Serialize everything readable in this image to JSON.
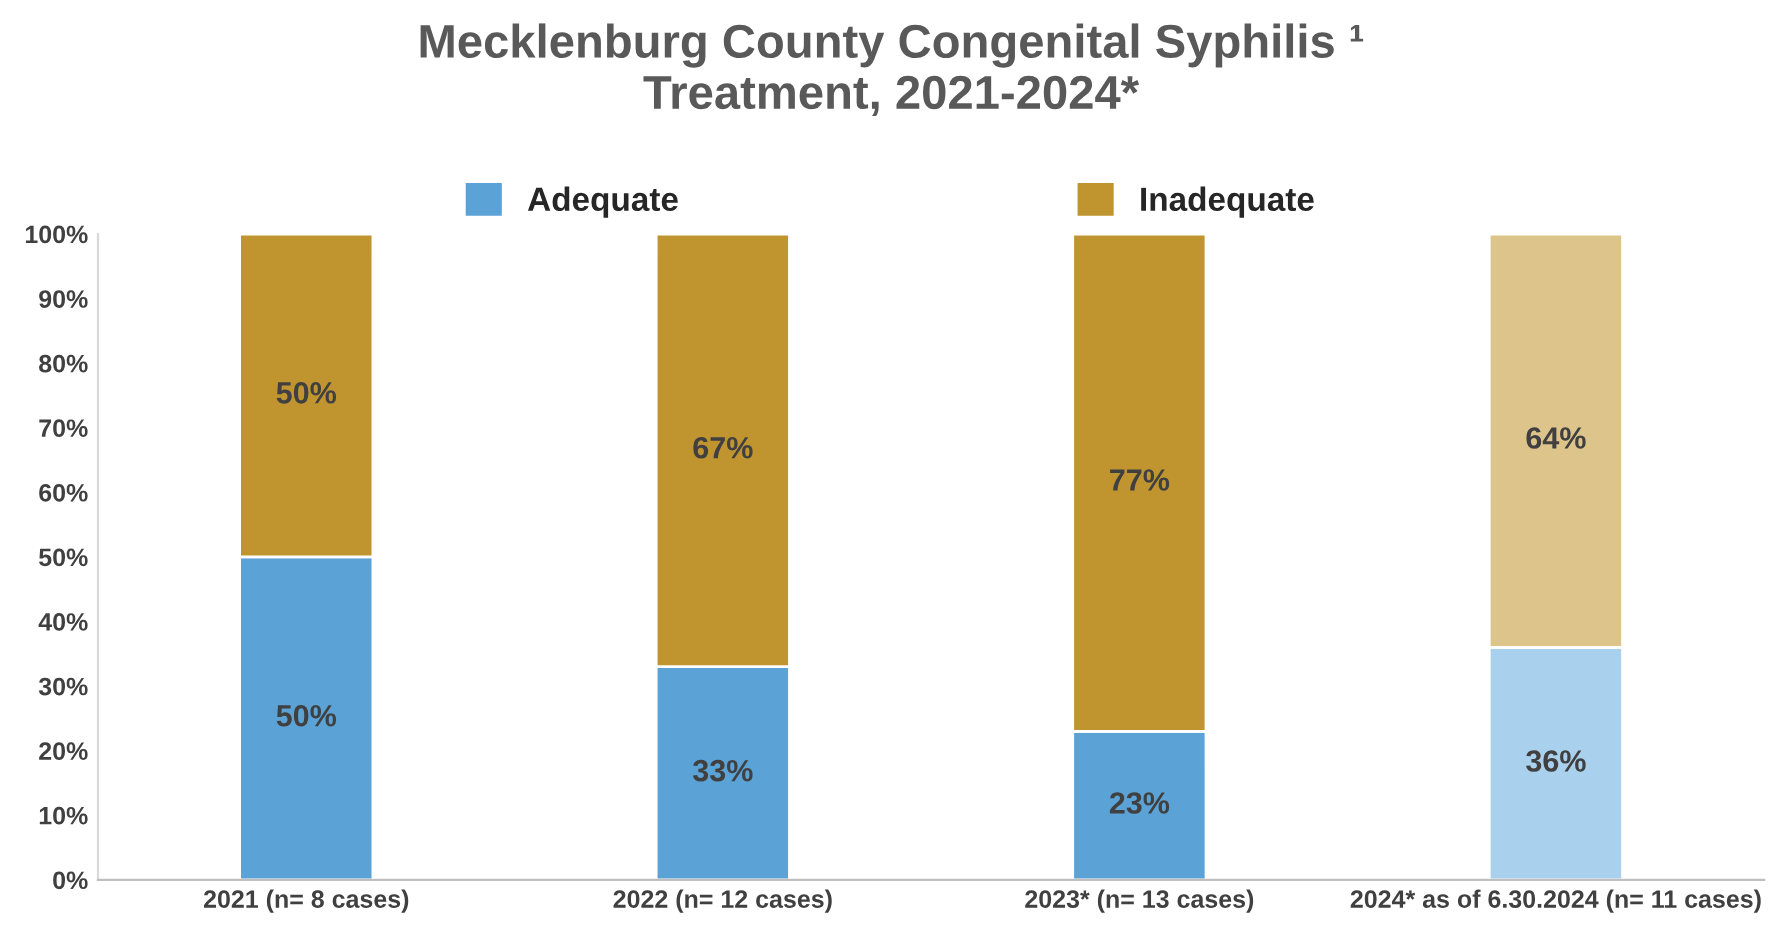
{
  "chart_data": {
    "type": "bar",
    "title": "Mecklenburg County Congenital Syphilis ¹\nTreatment, 2021-2024*",
    "categories": [
      "2021 (n= 8 cases)",
      "2022 (n= 12 cases)",
      "2023* (n= 13 cases)",
      "2024* as of 6.30.2024 (n= 11 cases)"
    ],
    "stacked": true,
    "series": [
      {
        "name": "Adequate",
        "color": "#5ba3d6",
        "colors": [
          "#5ba3d6",
          "#5ba3d6",
          "#5ba3d6",
          "#a9d0ec"
        ],
        "values": [
          50,
          33,
          23,
          36
        ],
        "value_labels": [
          "50%",
          "33%",
          "23%",
          "36%"
        ]
      },
      {
        "name": "Inadequate",
        "color": "#c09530",
        "colors": [
          "#c09530",
          "#c09530",
          "#c09530",
          "#ddc48a"
        ],
        "values": [
          50,
          67,
          77,
          64
        ],
        "value_labels": [
          "50%",
          "67%",
          "77%",
          "64%"
        ]
      }
    ],
    "ylim": [
      0,
      100
    ],
    "yticks": [
      {
        "value": 0,
        "label": "0%"
      },
      {
        "value": 10,
        "label": "10%"
      },
      {
        "value": 20,
        "label": "20%"
      },
      {
        "value": 30,
        "label": "30%"
      },
      {
        "value": 40,
        "label": "40%"
      },
      {
        "value": 50,
        "label": "50%"
      },
      {
        "value": 60,
        "label": "60%"
      },
      {
        "value": 70,
        "label": "70%"
      },
      {
        "value": 80,
        "label": "80%"
      },
      {
        "value": 90,
        "label": "90%"
      },
      {
        "value": 100,
        "label": "100%"
      }
    ],
    "legend": "top",
    "grid": false
  }
}
